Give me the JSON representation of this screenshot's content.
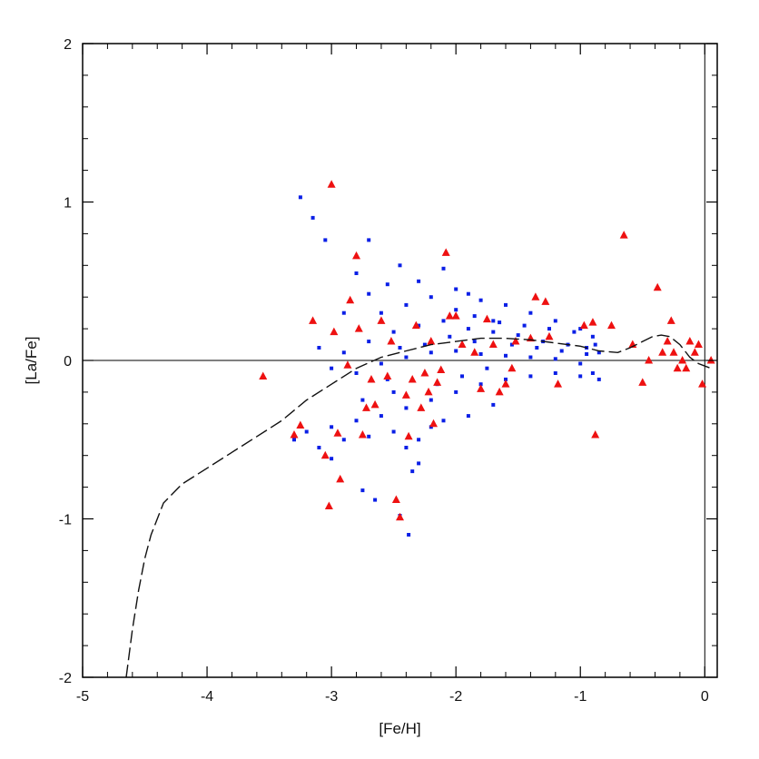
{
  "chart_data": {
    "type": "scatter",
    "title": "",
    "xlabel": "[Fe/H]",
    "ylabel": "[La/Fe]",
    "xlim": [
      -5,
      0.1
    ],
    "ylim": [
      -2,
      2
    ],
    "x_ticks": [
      -5,
      -4,
      -3,
      -2,
      -1,
      0
    ],
    "y_ticks": [
      -2,
      -1,
      0,
      1,
      2
    ],
    "x_tick_labels": [
      "-5",
      "-4",
      "-3",
      "-2",
      "-1",
      "0"
    ],
    "y_tick_labels": [
      "-2",
      "-1",
      "0",
      "1",
      "2"
    ],
    "grid": false,
    "reference_lines": {
      "horizontal_y": 0,
      "vertical_x": 0
    },
    "colors": {
      "model_points": "#0a1fe6",
      "observations": "#ee1111",
      "mean_curve": "#111111",
      "axes": "#000000"
    },
    "series": [
      {
        "marker": "square",
        "color": "#0a1fe6",
        "points": [
          [
            -3.25,
            1.03
          ],
          [
            -3.15,
            0.9
          ],
          [
            -3.05,
            0.76
          ],
          [
            -2.7,
            0.76
          ],
          [
            -2.8,
            0.55
          ],
          [
            -2.7,
            0.42
          ],
          [
            -2.55,
            0.48
          ],
          [
            -2.45,
            0.6
          ],
          [
            -2.3,
            0.5
          ],
          [
            -2.1,
            0.58
          ],
          [
            -2.0,
            0.45
          ],
          [
            -1.9,
            0.42
          ],
          [
            -1.8,
            0.38
          ],
          [
            -1.6,
            0.35
          ],
          [
            -1.4,
            0.3
          ],
          [
            -1.2,
            0.25
          ],
          [
            -1.0,
            0.2
          ],
          [
            -0.9,
            0.15
          ],
          [
            -2.9,
            0.3
          ],
          [
            -2.6,
            0.3
          ],
          [
            -2.4,
            0.35
          ],
          [
            -2.2,
            0.4
          ],
          [
            -2.0,
            0.32
          ],
          [
            -1.85,
            0.28
          ],
          [
            -1.7,
            0.25
          ],
          [
            -3.1,
            0.08
          ],
          [
            -2.9,
            0.05
          ],
          [
            -2.7,
            0.12
          ],
          [
            -2.5,
            0.18
          ],
          [
            -2.3,
            0.22
          ],
          [
            -2.1,
            0.25
          ],
          [
            -1.9,
            0.2
          ],
          [
            -1.7,
            0.18
          ],
          [
            -1.5,
            0.16
          ],
          [
            -1.3,
            0.12
          ],
          [
            -1.1,
            0.1
          ],
          [
            -0.95,
            0.08
          ],
          [
            -0.85,
            0.05
          ],
          [
            -3.0,
            -0.05
          ],
          [
            -2.8,
            -0.08
          ],
          [
            -2.6,
            -0.02
          ],
          [
            -2.4,
            0.02
          ],
          [
            -2.2,
            0.05
          ],
          [
            -2.0,
            0.06
          ],
          [
            -1.8,
            0.04
          ],
          [
            -1.6,
            0.03
          ],
          [
            -1.4,
            0.02
          ],
          [
            -1.2,
            0.01
          ],
          [
            -1.0,
            -0.02
          ],
          [
            -0.9,
            -0.08
          ],
          [
            -0.85,
            -0.12
          ],
          [
            -3.2,
            -0.45
          ],
          [
            -3.0,
            -0.42
          ],
          [
            -2.8,
            -0.38
          ],
          [
            -2.6,
            -0.35
          ],
          [
            -2.4,
            -0.3
          ],
          [
            -2.2,
            -0.25
          ],
          [
            -2.0,
            -0.2
          ],
          [
            -1.8,
            -0.15
          ],
          [
            -1.6,
            -0.12
          ],
          [
            -1.4,
            -0.1
          ],
          [
            -1.2,
            -0.08
          ],
          [
            -1.0,
            -0.1
          ],
          [
            -3.3,
            -0.5
          ],
          [
            -3.1,
            -0.55
          ],
          [
            -2.9,
            -0.5
          ],
          [
            -2.7,
            -0.48
          ],
          [
            -2.5,
            -0.45
          ],
          [
            -2.3,
            -0.5
          ],
          [
            -2.2,
            -0.42
          ],
          [
            -2.4,
            -0.55
          ],
          [
            -2.3,
            -0.65
          ],
          [
            -2.35,
            -0.7
          ],
          [
            -3.0,
            -0.62
          ],
          [
            -2.75,
            -0.82
          ],
          [
            -2.65,
            -0.88
          ],
          [
            -2.45,
            -0.98
          ],
          [
            -2.38,
            -1.1
          ],
          [
            -2.5,
            -0.2
          ],
          [
            -2.1,
            -0.38
          ],
          [
            -1.9,
            -0.35
          ],
          [
            -1.7,
            -0.28
          ],
          [
            -2.75,
            -0.25
          ],
          [
            -2.55,
            -0.12
          ],
          [
            -2.15,
            -0.15
          ],
          [
            -1.95,
            -0.1
          ],
          [
            -1.75,
            -0.05
          ],
          [
            -1.55,
            0.1
          ],
          [
            -1.35,
            0.08
          ],
          [
            -1.15,
            0.06
          ],
          [
            -0.95,
            0.04
          ],
          [
            -0.88,
            0.1
          ],
          [
            -1.05,
            0.18
          ],
          [
            -1.25,
            0.2
          ],
          [
            -1.45,
            0.22
          ],
          [
            -1.65,
            0.24
          ],
          [
            -1.85,
            0.12
          ],
          [
            -2.05,
            0.15
          ],
          [
            -2.25,
            0.1
          ],
          [
            -2.45,
            0.08
          ]
        ]
      },
      {
        "marker": "triangle",
        "color": "#ee1111",
        "points": [
          [
            -3.55,
            -0.1
          ],
          [
            -3.3,
            -0.47
          ],
          [
            -3.25,
            -0.41
          ],
          [
            -3.15,
            0.25
          ],
          [
            -3.05,
            -0.6
          ],
          [
            -3.02,
            -0.92
          ],
          [
            -3.0,
            1.11
          ],
          [
            -2.98,
            0.18
          ],
          [
            -2.95,
            -0.46
          ],
          [
            -2.93,
            -0.75
          ],
          [
            -2.87,
            -0.03
          ],
          [
            -2.85,
            0.38
          ],
          [
            -2.8,
            0.66
          ],
          [
            -2.78,
            0.2
          ],
          [
            -2.75,
            -0.47
          ],
          [
            -2.72,
            -0.3
          ],
          [
            -2.68,
            -0.12
          ],
          [
            -2.65,
            -0.28
          ],
          [
            -2.6,
            0.25
          ],
          [
            -2.55,
            -0.1
          ],
          [
            -2.52,
            0.12
          ],
          [
            -2.48,
            -0.88
          ],
          [
            -2.45,
            -0.99
          ],
          [
            -2.4,
            -0.22
          ],
          [
            -2.38,
            -0.48
          ],
          [
            -2.35,
            -0.12
          ],
          [
            -2.32,
            0.22
          ],
          [
            -2.28,
            -0.3
          ],
          [
            -2.25,
            -0.08
          ],
          [
            -2.22,
            -0.2
          ],
          [
            -2.2,
            0.12
          ],
          [
            -2.18,
            -0.4
          ],
          [
            -2.15,
            -0.14
          ],
          [
            -2.12,
            -0.06
          ],
          [
            -2.08,
            0.68
          ],
          [
            -2.05,
            0.28
          ],
          [
            -2.0,
            0.28
          ],
          [
            -1.95,
            0.1
          ],
          [
            -1.85,
            0.05
          ],
          [
            -1.8,
            -0.18
          ],
          [
            -1.75,
            0.26
          ],
          [
            -1.7,
            0.1
          ],
          [
            -1.65,
            -0.2
          ],
          [
            -1.6,
            -0.15
          ],
          [
            -1.55,
            -0.05
          ],
          [
            -1.52,
            0.12
          ],
          [
            -1.4,
            0.14
          ],
          [
            -1.36,
            0.4
          ],
          [
            -1.28,
            0.37
          ],
          [
            -1.25,
            0.15
          ],
          [
            -1.18,
            -0.15
          ],
          [
            -0.97,
            0.22
          ],
          [
            -0.9,
            0.24
          ],
          [
            -0.88,
            -0.47
          ],
          [
            -0.75,
            0.22
          ],
          [
            -0.65,
            0.79
          ],
          [
            -0.58,
            0.1
          ],
          [
            -0.5,
            -0.14
          ],
          [
            -0.45,
            0.0
          ],
          [
            -0.38,
            0.46
          ],
          [
            -0.34,
            0.05
          ],
          [
            -0.3,
            0.12
          ],
          [
            -0.27,
            0.25
          ],
          [
            -0.25,
            0.05
          ],
          [
            -0.22,
            -0.05
          ],
          [
            -0.18,
            0.0
          ],
          [
            -0.15,
            -0.05
          ],
          [
            -0.12,
            0.12
          ],
          [
            -0.08,
            0.05
          ],
          [
            -0.05,
            0.1
          ],
          [
            -0.02,
            -0.15
          ],
          [
            0.05,
            0.0
          ]
        ]
      },
      {
        "marker": "line",
        "style": "dashed",
        "color": "#111111",
        "points": [
          [
            -4.65,
            -2.0
          ],
          [
            -4.6,
            -1.7
          ],
          [
            -4.55,
            -1.45
          ],
          [
            -4.5,
            -1.25
          ],
          [
            -4.45,
            -1.1
          ],
          [
            -4.35,
            -0.9
          ],
          [
            -4.2,
            -0.78
          ],
          [
            -4.0,
            -0.68
          ],
          [
            -3.8,
            -0.58
          ],
          [
            -3.6,
            -0.48
          ],
          [
            -3.4,
            -0.38
          ],
          [
            -3.2,
            -0.25
          ],
          [
            -3.0,
            -0.15
          ],
          [
            -2.8,
            -0.05
          ],
          [
            -2.6,
            0.02
          ],
          [
            -2.4,
            0.06
          ],
          [
            -2.2,
            0.1
          ],
          [
            -2.0,
            0.12
          ],
          [
            -1.8,
            0.14
          ],
          [
            -1.6,
            0.14
          ],
          [
            -1.4,
            0.13
          ],
          [
            -1.2,
            0.11
          ],
          [
            -1.0,
            0.09
          ],
          [
            -0.85,
            0.06
          ],
          [
            -0.7,
            0.05
          ],
          [
            -0.6,
            0.08
          ],
          [
            -0.5,
            0.12
          ],
          [
            -0.42,
            0.15
          ],
          [
            -0.35,
            0.16
          ],
          [
            -0.28,
            0.15
          ],
          [
            -0.2,
            0.1
          ],
          [
            -0.12,
            0.02
          ],
          [
            -0.05,
            -0.02
          ],
          [
            0.05,
            -0.05
          ]
        ]
      }
    ]
  }
}
